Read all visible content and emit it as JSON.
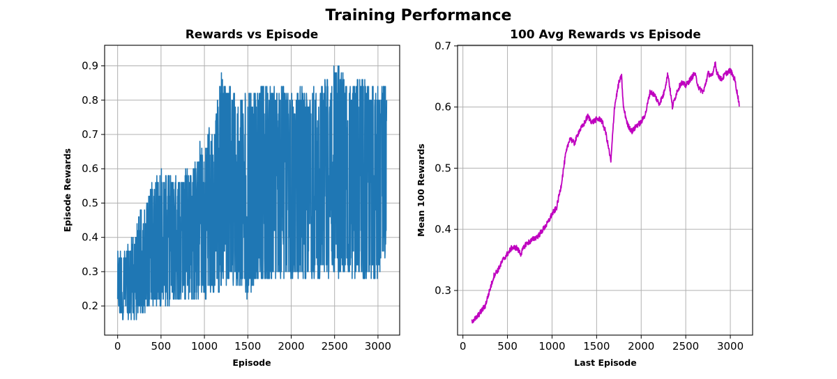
{
  "figure": {
    "title": "Training Performance"
  },
  "chart_data": [
    {
      "type": "line",
      "title": "Rewards vs Episode",
      "xlabel": "Episode",
      "ylabel": "Episode Rewards",
      "xlim": [
        -150,
        3250
      ],
      "ylim": [
        0.115,
        0.96
      ],
      "xticks": [
        0,
        500,
        1000,
        1500,
        2000,
        2500,
        3000
      ],
      "yticks": [
        0.2,
        0.3,
        0.4,
        0.5,
        0.6,
        0.7,
        0.8,
        0.9
      ],
      "grid": true,
      "color": "#1f77b4",
      "series": [
        {
          "episodes": [
            0,
            3100
          ],
          "envelope_x": [
            0,
            50,
            100,
            150,
            200,
            250,
            300,
            350,
            400,
            450,
            500,
            550,
            600,
            650,
            700,
            750,
            800,
            850,
            900,
            950,
            1000,
            1050,
            1100,
            1150,
            1200,
            1250,
            1300,
            1350,
            1400,
            1450,
            1500,
            1550,
            1600,
            1650,
            1700,
            1750,
            1800,
            1850,
            1900,
            1950,
            2000,
            2050,
            2100,
            2150,
            2200,
            2250,
            2300,
            2350,
            2400,
            2450,
            2500,
            2550,
            2600,
            2650,
            2700,
            2750,
            2800,
            2850,
            2900,
            2950,
            3000,
            3050,
            3100
          ],
          "envelope_max": [
            0.36,
            0.38,
            0.36,
            0.4,
            0.4,
            0.48,
            0.47,
            0.52,
            0.56,
            0.58,
            0.6,
            0.58,
            0.6,
            0.58,
            0.58,
            0.58,
            0.6,
            0.58,
            0.62,
            0.68,
            0.66,
            0.72,
            0.7,
            0.8,
            0.9,
            0.82,
            0.84,
            0.82,
            0.82,
            0.82,
            0.82,
            0.82,
            0.84,
            0.84,
            0.88,
            0.84,
            0.84,
            0.84,
            0.86,
            0.82,
            0.82,
            0.8,
            0.84,
            0.82,
            0.82,
            0.84,
            0.82,
            0.84,
            0.88,
            0.86,
            0.92,
            0.92,
            0.88,
            0.86,
            0.84,
            0.88,
            0.88,
            0.86,
            0.84,
            0.84,
            0.84,
            0.84,
            0.84
          ],
          "envelope_min": [
            0.16,
            0.16,
            0.16,
            0.16,
            0.16,
            0.16,
            0.18,
            0.19,
            0.2,
            0.2,
            0.2,
            0.2,
            0.2,
            0.21,
            0.21,
            0.21,
            0.21,
            0.21,
            0.2,
            0.21,
            0.21,
            0.22,
            0.23,
            0.23,
            0.26,
            0.25,
            0.26,
            0.26,
            0.25,
            0.24,
            0.22,
            0.25,
            0.27,
            0.27,
            0.27,
            0.27,
            0.26,
            0.27,
            0.27,
            0.27,
            0.27,
            0.28,
            0.27,
            0.28,
            0.27,
            0.27,
            0.27,
            0.28,
            0.28,
            0.28,
            0.28,
            0.28,
            0.29,
            0.28,
            0.28,
            0.28,
            0.28,
            0.28,
            0.29,
            0.28,
            0.28,
            0.32,
            0.33
          ]
        }
      ]
    },
    {
      "type": "line",
      "title": "100 Avg Rewards vs Episode",
      "xlabel": "Last Episode",
      "ylabel": "Mean 100 Rewards",
      "xlim": [
        -60,
        3250
      ],
      "ylim": [
        0.227,
        0.701
      ],
      "xticks": [
        0,
        500,
        1000,
        1500,
        2000,
        2500,
        3000
      ],
      "yticks": [
        0.3,
        0.4,
        0.5,
        0.6,
        0.7
      ],
      "grid": true,
      "color": "#bf00bf",
      "series": [
        {
          "x": [
            100,
            150,
            200,
            250,
            300,
            350,
            400,
            450,
            500,
            550,
            600,
            650,
            700,
            750,
            800,
            850,
            900,
            950,
            1000,
            1050,
            1100,
            1150,
            1200,
            1250,
            1300,
            1350,
            1400,
            1450,
            1500,
            1550,
            1600,
            1650,
            1660,
            1700,
            1750,
            1780,
            1800,
            1850,
            1900,
            1950,
            2000,
            2050,
            2100,
            2150,
            2200,
            2250,
            2300,
            2350,
            2400,
            2450,
            2500,
            2550,
            2600,
            2650,
            2700,
            2750,
            2800,
            2830,
            2850,
            2900,
            2950,
            3000,
            3050,
            3100
          ],
          "y": [
            0.25,
            0.255,
            0.265,
            0.275,
            0.3,
            0.325,
            0.335,
            0.35,
            0.36,
            0.37,
            0.37,
            0.36,
            0.375,
            0.38,
            0.385,
            0.39,
            0.4,
            0.41,
            0.425,
            0.435,
            0.47,
            0.52,
            0.55,
            0.54,
            0.56,
            0.57,
            0.585,
            0.575,
            0.58,
            0.58,
            0.56,
            0.52,
            0.51,
            0.6,
            0.64,
            0.65,
            0.6,
            0.57,
            0.56,
            0.57,
            0.575,
            0.59,
            0.625,
            0.62,
            0.605,
            0.62,
            0.655,
            0.6,
            0.625,
            0.64,
            0.635,
            0.645,
            0.655,
            0.63,
            0.625,
            0.655,
            0.65,
            0.675,
            0.655,
            0.645,
            0.655,
            0.66,
            0.645,
            0.605
          ]
        }
      ]
    }
  ]
}
